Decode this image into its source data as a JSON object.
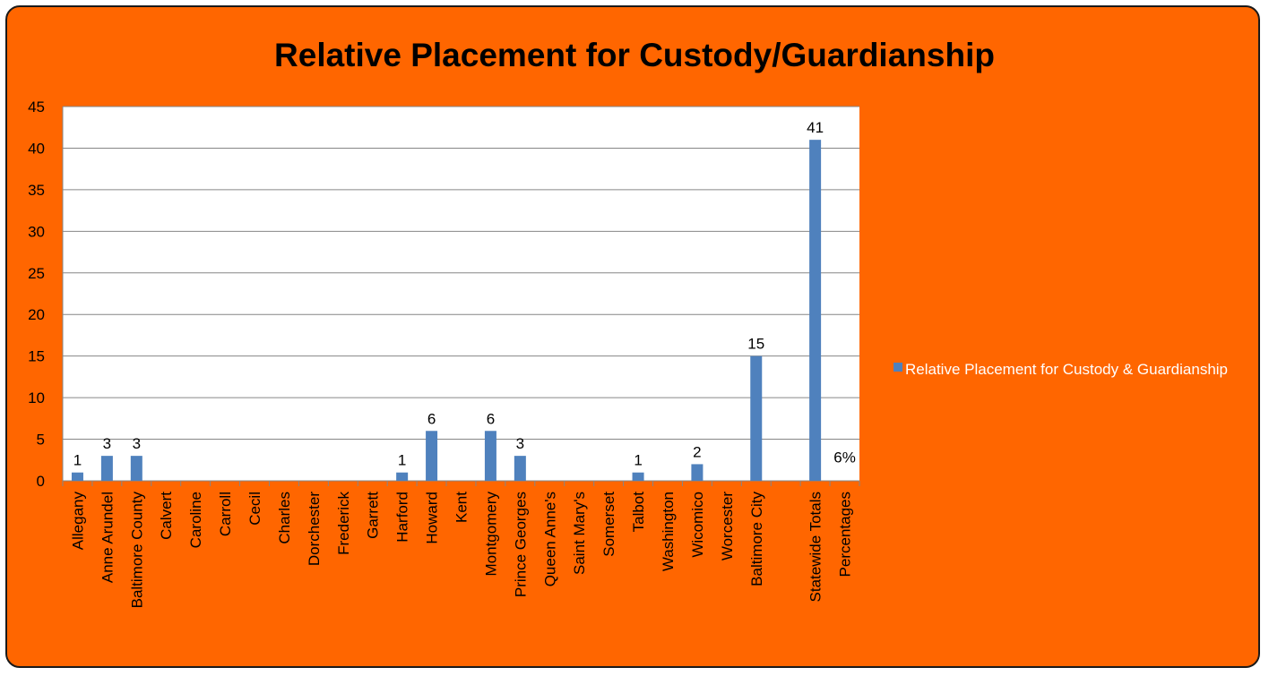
{
  "chart_data": {
    "type": "bar",
    "title": "Relative Placement for Custody/Guardianship",
    "categories": [
      "Allegany",
      "Anne Arundel",
      "Baltimore County",
      "Calvert",
      "Caroline",
      "Carroll",
      "Cecil",
      "Charles",
      "Dorchester",
      "Frederick",
      "Garrett",
      "Harford",
      "Howard",
      "Kent",
      "Montgomery",
      "Prince Georges",
      "Queen Anne's",
      "Saint Mary's",
      "Somerset",
      "Talbot",
      "Washington",
      "Wicomico",
      "Worcester",
      "Baltimore City",
      "",
      "Statewide Totals",
      "Percentages"
    ],
    "series": [
      {
        "name": "Relative Placement for Custody & Guardianship",
        "values": [
          1,
          3,
          3,
          null,
          null,
          null,
          null,
          null,
          null,
          null,
          null,
          1,
          6,
          null,
          6,
          3,
          null,
          null,
          null,
          1,
          null,
          2,
          null,
          15,
          null,
          41,
          null
        ],
        "data_labels": [
          "1",
          "3",
          "3",
          "",
          "",
          "",
          "",
          "",
          "",
          "",
          "",
          "1",
          "6",
          "",
          "6",
          "3",
          "",
          "",
          "",
          "1",
          "",
          "2",
          "",
          "15",
          "",
          "41",
          "6%"
        ]
      }
    ],
    "ylim": [
      0,
      45
    ],
    "yticks": [
      0,
      5,
      10,
      15,
      20,
      25,
      30,
      35,
      40,
      45
    ],
    "xlabel": "",
    "ylabel": "",
    "grid": true,
    "legend_position": "right",
    "colors": {
      "background": "#ff6600",
      "plot_area": "#ffffff",
      "bar": "#4f81bd",
      "gridline": "#868686",
      "legend_text": "#ffffff",
      "text": "#000000"
    }
  }
}
